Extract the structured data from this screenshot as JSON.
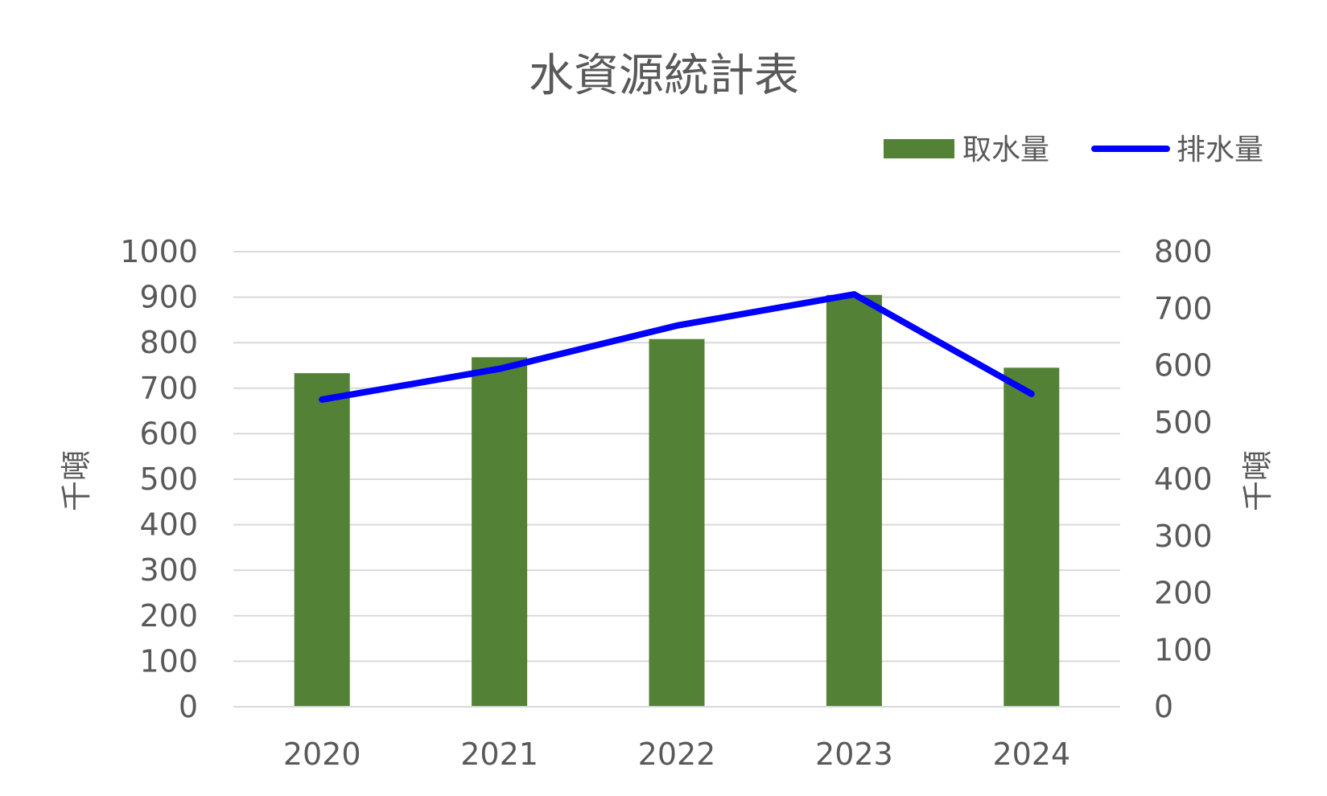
{
  "chart_data": {
    "type": "bar",
    "title": "水資源統計表",
    "categories": [
      "2020",
      "2021",
      "2022",
      "2023",
      "2024"
    ],
    "series": [
      {
        "name": "取水量",
        "type": "bar",
        "axis": "left",
        "color": "#538135",
        "values": [
          733,
          768,
          808,
          905,
          745
        ]
      },
      {
        "name": "排水量",
        "type": "line",
        "axis": "right",
        "color": "#0000ff",
        "values": [
          540,
          594,
          670,
          725,
          550
        ]
      }
    ],
    "y_left": {
      "label": "千噸",
      "min": 0,
      "max": 1000,
      "step": 100,
      "ticks": [
        "0",
        "100",
        "200",
        "300",
        "400",
        "500",
        "600",
        "700",
        "800",
        "900",
        "1000"
      ]
    },
    "y_right": {
      "label": "千噸",
      "min": 0,
      "max": 800,
      "step": 100,
      "ticks": [
        "0",
        "100",
        "200",
        "300",
        "400",
        "500",
        "600",
        "700",
        "800"
      ]
    },
    "grid": true,
    "legend": "top-right"
  }
}
